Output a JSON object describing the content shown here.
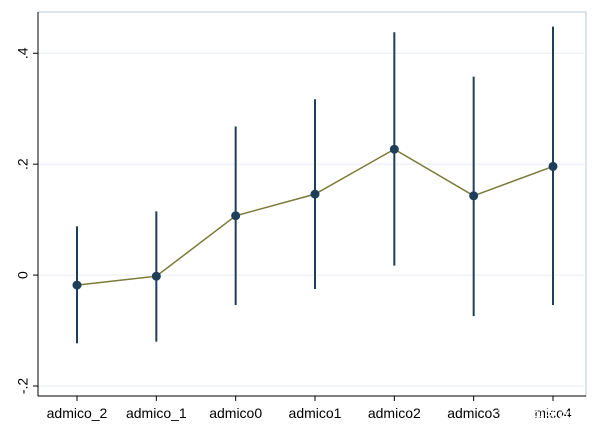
{
  "chart_data": {
    "type": "line",
    "title": "",
    "xlabel": "",
    "ylabel": "",
    "categories": [
      "admico_2",
      "admico_1",
      "admico0",
      "admico1",
      "admico2",
      "admico3",
      "admico4"
    ],
    "x_tick_labels": [
      "admico_2",
      "admico_1",
      "admico0",
      "admico1",
      "admico2",
      "admico3",
      "mico4"
    ],
    "series": [
      {
        "values": [
          -0.018,
          -0.002,
          0.107,
          0.146,
          0.227,
          0.143,
          0.196
        ],
        "ci_lower": [
          -0.123,
          -0.12,
          -0.054,
          -0.025,
          0.017,
          -0.074,
          -0.054
        ],
        "ci_upper": [
          0.088,
          0.115,
          0.268,
          0.317,
          0.438,
          0.358,
          0.448
        ]
      }
    ],
    "y_ticks": [
      -0.2,
      0,
      0.2,
      0.4
    ],
    "y_tick_labels": [
      "-.2",
      "0",
      ".2",
      ".4"
    ],
    "ylim": [
      -0.2,
      0.46
    ],
    "grid": true,
    "colors": {
      "line": "#7a7a3a",
      "marker": "#1e3f5a",
      "error_bar": "#1e3f5a",
      "gridline": "#e7eef3",
      "axis": "#000000",
      "frame": "#bcc9d3"
    }
  },
  "watermark": {
    "text": "知乎 @陈天君"
  }
}
